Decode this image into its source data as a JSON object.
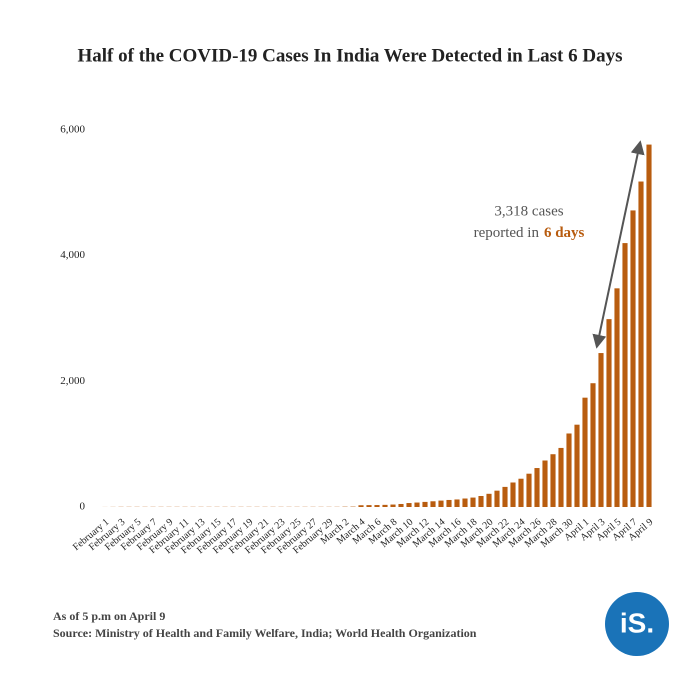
{
  "chart_data": {
    "type": "bar",
    "title": "Half of the COVID-19 Cases In India Were Detected in Last 6 Days",
    "categories": [
      "February 1",
      null,
      "February 3",
      null,
      "February 5",
      null,
      "February 7",
      null,
      "February 9",
      null,
      "February 11",
      null,
      "February 13",
      null,
      "February 15",
      null,
      "February 17",
      null,
      "February 19",
      null,
      "February 21",
      null,
      "February 23",
      null,
      "February 25",
      null,
      "February 27",
      null,
      "February 29",
      null,
      "March 2",
      null,
      "March 4",
      null,
      "March 6",
      null,
      "March 8",
      null,
      "March 10",
      null,
      "March 12",
      null,
      "March 14",
      null,
      "March 16",
      null,
      "March 18",
      null,
      "March 20",
      null,
      "March 22",
      null,
      "March 24",
      null,
      "March 26",
      null,
      "March 28",
      null,
      "March 30",
      null,
      "April 1",
      null,
      "April 3",
      null,
      "April 5",
      null,
      "April 7",
      null,
      "April 9"
    ],
    "values": [
      1,
      2,
      3,
      3,
      3,
      3,
      3,
      3,
      3,
      3,
      3,
      3,
      3,
      3,
      3,
      3,
      3,
      3,
      3,
      3,
      3,
      3,
      3,
      3,
      3,
      3,
      3,
      3,
      3,
      3,
      5,
      6,
      28,
      30,
      31,
      34,
      39,
      48,
      63,
      71,
      81,
      91,
      102,
      112,
      120,
      135,
      150,
      175,
      210,
      260,
      320,
      390,
      450,
      530,
      620,
      740,
      840,
      940,
      1170,
      1310,
      1740,
      1970,
      2450,
      2990,
      3480,
      4200,
      4720,
      5180,
      5768
    ],
    "color": "#b85c0f",
    "ylim": [
      0,
      6000
    ],
    "yticks": [
      0,
      {
        "value": 2000,
        "label": "2,000"
      },
      {
        "value": 4000,
        "label": "4,000"
      },
      {
        "value": 6000,
        "label": "6,000"
      }
    ],
    "grid": false,
    "annotation": {
      "line1": "3,318 cases",
      "line2": "reported in",
      "highlight": "6 days"
    },
    "notes": [
      "As of 5 p.m on April 9",
      "Source: Ministry of Health and Family Welfare, India; World Health Organization"
    ],
    "logo": "iS."
  }
}
